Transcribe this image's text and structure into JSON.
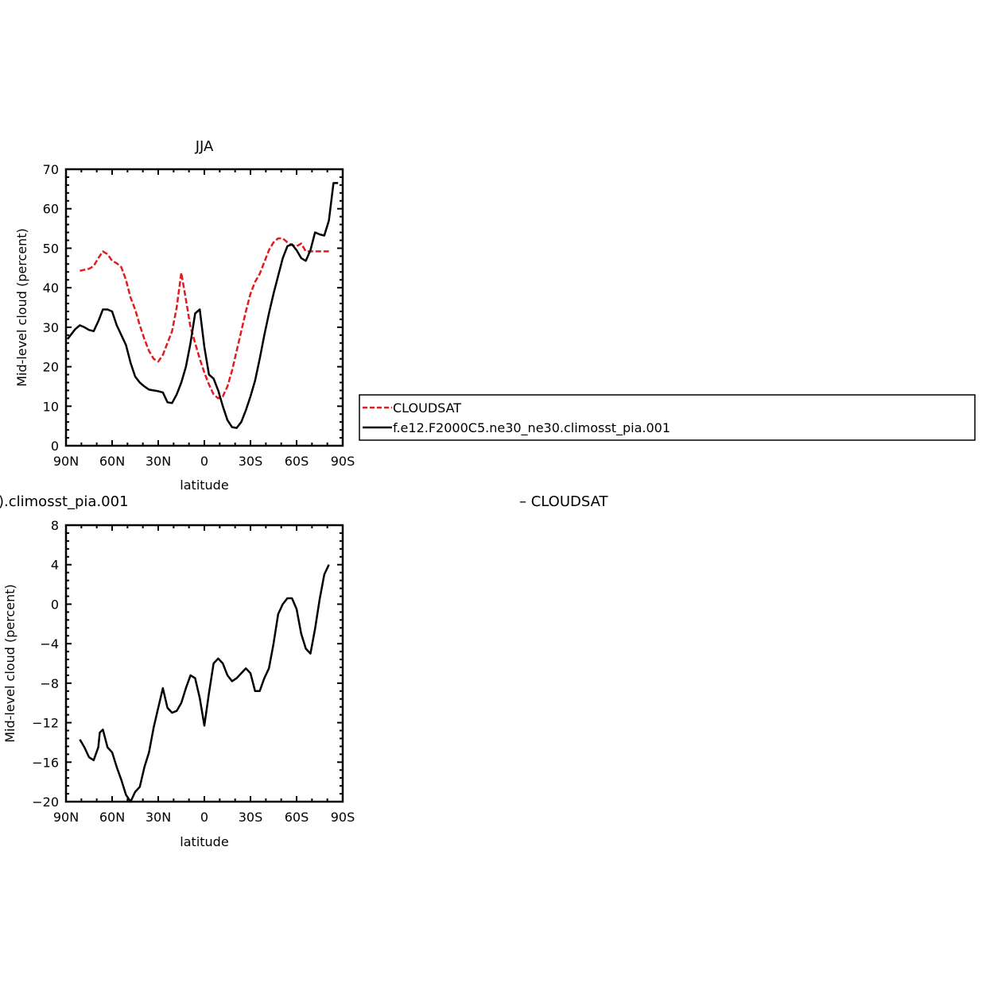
{
  "colors": {
    "cloudsat": "#e41a1c",
    "model": "#000000"
  },
  "legend": {
    "entries": [
      "CLOUDSAT",
      "f.e12.F2000C5.ne30_ne30.climosst_pia.001"
    ]
  },
  "bottom_titles": {
    "left": ").climosst_pia.001",
    "right": "– CLOUDSAT"
  },
  "chart_data": [
    {
      "type": "line",
      "title": "JJA",
      "xlabel": "latitude",
      "ylabel": "Mid-level cloud (percent)",
      "xlim": [
        90,
        -90
      ],
      "ylim": [
        0,
        70
      ],
      "x_ticks": [
        90,
        60,
        30,
        0,
        -30,
        -60,
        -90
      ],
      "x_tick_labels": [
        "90N",
        "60N",
        "30N",
        "0",
        "30S",
        "60S",
        "90S"
      ],
      "y_ticks": [
        0,
        10,
        20,
        30,
        40,
        50,
        60,
        70
      ],
      "y_tick_labels": [
        "0",
        "10",
        "20",
        "30",
        "40",
        "50",
        "60",
        "70"
      ],
      "series": [
        {
          "name": "CLOUDSAT",
          "style": "dashed",
          "x": [
            81,
            75,
            72,
            69,
            66,
            63,
            60,
            57,
            54,
            51,
            48,
            45,
            42,
            39,
            36,
            33,
            30,
            27,
            24,
            21,
            18,
            15,
            12,
            9,
            6,
            3,
            0,
            -3,
            -6,
            -9,
            -12,
            -15,
            -18,
            -21,
            -24,
            -27,
            -30,
            -33,
            -36,
            -39,
            -42,
            -45,
            -48,
            -51,
            -54,
            -57,
            -60,
            -63,
            -66,
            -69,
            -72,
            -75,
            -78,
            -81
          ],
          "y": [
            44.3,
            44.8,
            45.5,
            47.5,
            49.2,
            48.5,
            46.8,
            46.2,
            45.2,
            42.0,
            37.5,
            34.5,
            30.5,
            27.0,
            24.0,
            22.0,
            21.3,
            23.0,
            26.0,
            29.0,
            35.0,
            43.8,
            37.0,
            30.0,
            26.0,
            22.0,
            18.5,
            15.5,
            13.0,
            12.0,
            12.5,
            15.0,
            19.0,
            24.0,
            29.0,
            34.0,
            38.5,
            41.5,
            43.5,
            46.5,
            49.5,
            51.5,
            52.5,
            52.5,
            51.5,
            50.8,
            50.5,
            51.2,
            49.2,
            49.2,
            49.2,
            49.2,
            49.2,
            49.2
          ]
        },
        {
          "name": "f.e12.F2000C5.ne30_ne30.climosst_pia.001",
          "style": "solid",
          "x": [
            89,
            84,
            81,
            78,
            75,
            72,
            69,
            66,
            63,
            60,
            57,
            54,
            51,
            48,
            45,
            42,
            39,
            36,
            33,
            30,
            27,
            24,
            21,
            18,
            15,
            12,
            9,
            6,
            3,
            0,
            -3,
            -6,
            -9,
            -12,
            -15,
            -18,
            -21,
            -24,
            -27,
            -30,
            -33,
            -36,
            -39,
            -42,
            -45,
            -48,
            -51,
            -54,
            -57,
            -60,
            -63,
            -66,
            -69,
            -72,
            -75,
            -78,
            -81,
            -84,
            -87
          ],
          "y": [
            27.0,
            29.5,
            30.5,
            30.0,
            29.3,
            29.0,
            31.5,
            34.5,
            34.5,
            34.0,
            30.5,
            28.0,
            25.5,
            21.0,
            17.5,
            16.0,
            15.0,
            14.2,
            14.0,
            13.8,
            13.5,
            11.0,
            10.8,
            13.0,
            16.0,
            20.0,
            26.0,
            33.5,
            34.5,
            25.0,
            18.0,
            17.0,
            14.0,
            10.0,
            6.5,
            4.7,
            4.5,
            6.0,
            9.0,
            12.5,
            16.5,
            22.0,
            28.0,
            33.5,
            38.5,
            43.0,
            47.5,
            50.5,
            51.0,
            49.5,
            47.5,
            46.8,
            49.5,
            54.0,
            53.5,
            53.2,
            57.0,
            66.5,
            66.5
          ]
        }
      ]
    },
    {
      "type": "line",
      "title": "",
      "xlabel": "latitude",
      "ylabel": "Mid-level cloud (percent)",
      "xlim": [
        90,
        -90
      ],
      "ylim": [
        -20,
        8
      ],
      "x_ticks": [
        90,
        60,
        30,
        0,
        -30,
        -60,
        -90
      ],
      "x_tick_labels": [
        "90N",
        "60N",
        "30N",
        "0",
        "30S",
        "60S",
        "90S"
      ],
      "y_ticks": [
        -20,
        -16,
        -12,
        -8,
        -4,
        0,
        4,
        8
      ],
      "y_tick_labels": [
        "−20",
        "−16",
        "−12",
        "−8",
        "−4",
        "0",
        "4",
        "8"
      ],
      "series": [
        {
          "style": "solid",
          "x": [
            81,
            78,
            75,
            72,
            69,
            68,
            66,
            63,
            60,
            57,
            54,
            51,
            48,
            45,
            42,
            39,
            36,
            33,
            30,
            27,
            24,
            21,
            18,
            15,
            12,
            9,
            6,
            3,
            0,
            -3,
            -6,
            -9,
            -12,
            -15,
            -18,
            -21,
            -24,
            -27,
            -30,
            -33,
            -36,
            -39,
            -42,
            -45,
            -48,
            -51,
            -54,
            -57,
            -60,
            -63,
            -66,
            -69,
            -72,
            -75,
            -78,
            -81
          ],
          "y": [
            -13.7,
            -14.5,
            -15.5,
            -15.8,
            -14.5,
            -13.0,
            -12.7,
            -14.5,
            -15.0,
            -16.5,
            -17.8,
            -19.3,
            -20.0,
            -19.0,
            -18.5,
            -16.5,
            -15.0,
            -12.5,
            -10.5,
            -8.5,
            -10.5,
            -11.0,
            -10.8,
            -10.0,
            -8.5,
            -7.2,
            -7.5,
            -9.5,
            -12.3,
            -9.0,
            -6.0,
            -5.5,
            -6.0,
            -7.2,
            -7.8,
            -7.5,
            -7.0,
            -6.5,
            -7.0,
            -8.8,
            -8.8,
            -7.5,
            -6.5,
            -4.0,
            -1.0,
            0.0,
            0.6,
            0.6,
            -0.5,
            -3.0,
            -4.5,
            -5.0,
            -2.5,
            0.5,
            3.0,
            4.0
          ]
        }
      ]
    }
  ]
}
